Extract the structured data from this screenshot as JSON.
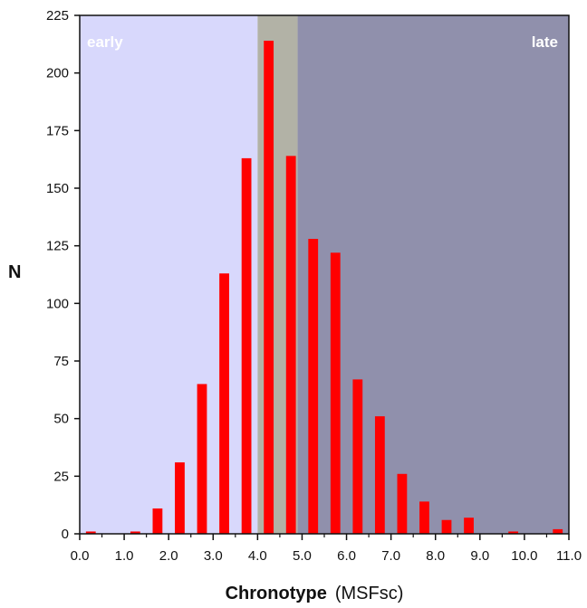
{
  "chart_data": {
    "type": "bar",
    "title": "",
    "xlabel": "Chronotype",
    "xlabel_unit": "(MSFsc)",
    "ylabel": "N",
    "xlim": [
      0,
      11
    ],
    "ylim": [
      0,
      225
    ],
    "x_ticks": [
      0,
      1,
      2,
      3,
      4,
      5,
      6,
      7,
      8,
      9,
      10,
      11
    ],
    "x_tick_labels": [
      "0.0",
      "1.0",
      "2.0",
      "3.0",
      "4.0",
      "5.0",
      "6.0",
      "7.0",
      "8.0",
      "9.0",
      "10.0",
      "11.0"
    ],
    "y_ticks": [
      0,
      25,
      50,
      75,
      100,
      125,
      150,
      175,
      200,
      225
    ],
    "y_tick_labels": [
      "0",
      "25",
      "50",
      "75",
      "100",
      "125",
      "150",
      "175",
      "200",
      "225"
    ],
    "bar_color": "#ff0000",
    "bar_width": 0.22,
    "x": [
      0.25,
      1.25,
      1.75,
      2.25,
      2.75,
      3.25,
      3.75,
      4.25,
      4.75,
      5.25,
      5.75,
      6.25,
      6.75,
      7.25,
      7.75,
      8.25,
      8.75,
      9.75,
      10.75
    ],
    "values": [
      1,
      1,
      11,
      31,
      65,
      113,
      163,
      214,
      164,
      128,
      122,
      67,
      51,
      26,
      14,
      6,
      7,
      1,
      2
    ],
    "regions": [
      {
        "name": "early",
        "x_range": [
          0,
          4.0
        ],
        "color": "#d8d8fc",
        "label": "early",
        "label_position": "top-left"
      },
      {
        "name": "intermediate",
        "x_range": [
          4.0,
          4.9
        ],
        "color": "#b2b2a6",
        "label": "",
        "label_position": ""
      },
      {
        "name": "late",
        "x_range": [
          4.9,
          11
        ],
        "color": "#9090ac",
        "label": "late",
        "label_position": "top-right"
      }
    ],
    "grid": false,
    "legend": "none"
  }
}
